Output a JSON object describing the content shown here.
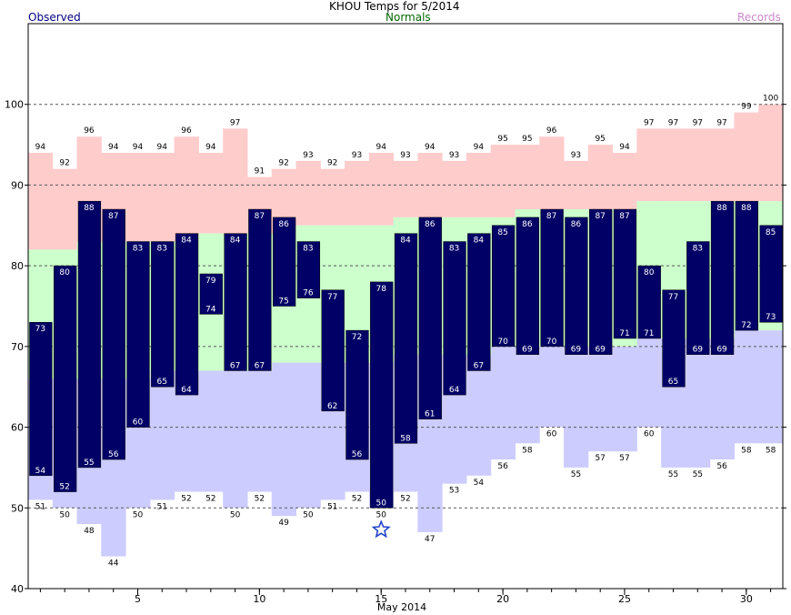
{
  "chart_data": {
    "type": "bar",
    "title": "KHOU Temps for 5/2014",
    "legend": {
      "observed": "Observed",
      "normals": "Normals",
      "records": "Records"
    },
    "xlabel": "May 2014",
    "ylim": [
      40,
      110
    ],
    "yticks": [
      40,
      50,
      60,
      70,
      80,
      90,
      100
    ],
    "xticks": [
      5,
      10,
      15,
      20,
      25,
      30
    ],
    "colors": {
      "observed": "#000066",
      "observed_text": "#ffffff",
      "normals": "#ccffcc",
      "record_high": "#ffcccc",
      "record_low": "#ccccff",
      "grid": "#555555",
      "title": "#000000",
      "observed_legend": "#000080",
      "normals_legend": "#006600",
      "records_legend": "#cc88cc",
      "star": "#2244cc"
    },
    "days": [
      1,
      2,
      3,
      4,
      5,
      6,
      7,
      8,
      9,
      10,
      11,
      12,
      13,
      14,
      15,
      16,
      17,
      18,
      19,
      20,
      21,
      22,
      23,
      24,
      25,
      26,
      27,
      28,
      29,
      30,
      31
    ],
    "observed_high": [
      73,
      80,
      88,
      87,
      83,
      83,
      84,
      79,
      84,
      87,
      86,
      83,
      77,
      72,
      78,
      84,
      86,
      83,
      84,
      85,
      86,
      87,
      86,
      87,
      87,
      80,
      77,
      83,
      88,
      88,
      85
    ],
    "observed_low": [
      54,
      52,
      55,
      56,
      60,
      65,
      64,
      74,
      67,
      67,
      75,
      76,
      62,
      56,
      50,
      58,
      61,
      64,
      67,
      70,
      69,
      70,
      69,
      69,
      71,
      71,
      65,
      69,
      69,
      72,
      73
    ],
    "normal_high": [
      82,
      82,
      83,
      83,
      83,
      83,
      83,
      84,
      84,
      84,
      84,
      85,
      85,
      85,
      85,
      86,
      86,
      86,
      86,
      86,
      87,
      87,
      87,
      87,
      87,
      88,
      88,
      88,
      88,
      88,
      88
    ],
    "normal_low": [
      66,
      66,
      66,
      66,
      66,
      67,
      67,
      67,
      67,
      67,
      68,
      68,
      68,
      68,
      68,
      69,
      69,
      69,
      69,
      70,
      70,
      70,
      70,
      70,
      70,
      71,
      71,
      71,
      71,
      72,
      72
    ],
    "record_high": [
      94,
      92,
      96,
      94,
      94,
      94,
      96,
      94,
      97,
      91,
      92,
      93,
      92,
      93,
      94,
      93,
      94,
      93,
      94,
      95,
      95,
      96,
      93,
      95,
      94,
      97,
      97,
      97,
      97,
      99,
      100
    ],
    "record_low": [
      51,
      50,
      48,
      44,
      50,
      51,
      52,
      52,
      50,
      52,
      49,
      50,
      51,
      52,
      50,
      52,
      47,
      53,
      54,
      56,
      58,
      60,
      55,
      57,
      57,
      60,
      55,
      55,
      56,
      58,
      58
    ],
    "record_low_marker_day": 15
  }
}
